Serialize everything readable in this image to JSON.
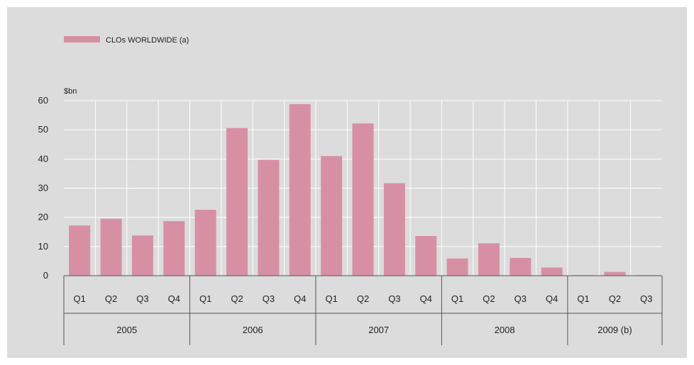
{
  "chart_data": {
    "type": "bar",
    "legend": {
      "label": "CLOs WORLDWIDE (a)",
      "position": "top-left"
    },
    "unit_label": "$bn",
    "ylim": [
      0,
      60
    ],
    "y_ticks": [
      "0",
      "10",
      "20",
      "30",
      "40",
      "50",
      "60"
    ],
    "grid": true,
    "bar_color": "#d790a3",
    "categories": [
      "Q1",
      "Q2",
      "Q3",
      "Q4",
      "Q1",
      "Q2",
      "Q3",
      "Q4",
      "Q1",
      "Q2",
      "Q3",
      "Q4",
      "Q1",
      "Q2",
      "Q3",
      "Q4",
      "Q1",
      "Q2",
      "Q3"
    ],
    "groups": [
      {
        "label": "2005",
        "count": 4
      },
      {
        "label": "2006",
        "count": 4
      },
      {
        "label": "2007",
        "count": 4
      },
      {
        "label": "2008",
        "count": 4
      },
      {
        "label": "2009 (b)",
        "count": 3
      }
    ],
    "series": [
      {
        "values": [
          17.2,
          19.5,
          13.8,
          18.7,
          22.6,
          50.6,
          39.7,
          58.8,
          41.0,
          52.2,
          31.7,
          13.6,
          5.9,
          11.1,
          6.1,
          2.8,
          0.2,
          1.3,
          0.2
        ]
      }
    ]
  }
}
